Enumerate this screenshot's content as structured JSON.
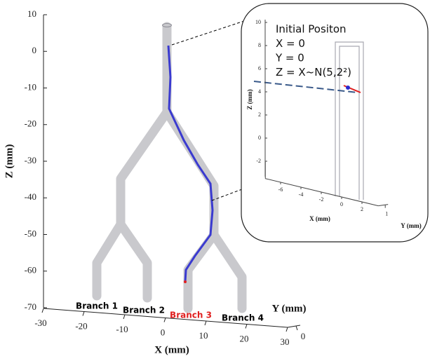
{
  "chart_data": {
    "type": "3d-trajectory",
    "zlabel": "Z (mm)",
    "xlabel": "X (mm)",
    "ylabel": "Y (mm)",
    "zlim": [
      -70,
      10
    ],
    "zticks": [
      10,
      0,
      -10,
      -20,
      -30,
      -40,
      -50,
      -60,
      -70
    ],
    "xlim": [
      -30,
      30
    ],
    "xticks": [
      -30,
      -20,
      -10,
      0,
      10,
      20,
      30
    ],
    "yticks": [
      0
    ],
    "annotations": [
      {
        "text": "Branch 1",
        "color": "#000000"
      },
      {
        "text": "Branch 2",
        "color": "#000000"
      },
      {
        "text": "Branch 3",
        "color": "#e02020"
      },
      {
        "text": "Branch 4",
        "color": "#000000"
      }
    ],
    "inset": {
      "lines": [
        "Initial Positon",
        "X = 0",
        "Y = 0",
        "Z = X~N(5,2²)"
      ],
      "zlabel": "Z (mm)",
      "xlabel": "X (mm)",
      "ylabel": "Y (mm)",
      "zticks": [
        10,
        8,
        6,
        4,
        2,
        0,
        -2
      ],
      "xticks": [
        -6,
        -4,
        -2,
        0,
        2
      ],
      "yticks": [
        1
      ]
    }
  }
}
